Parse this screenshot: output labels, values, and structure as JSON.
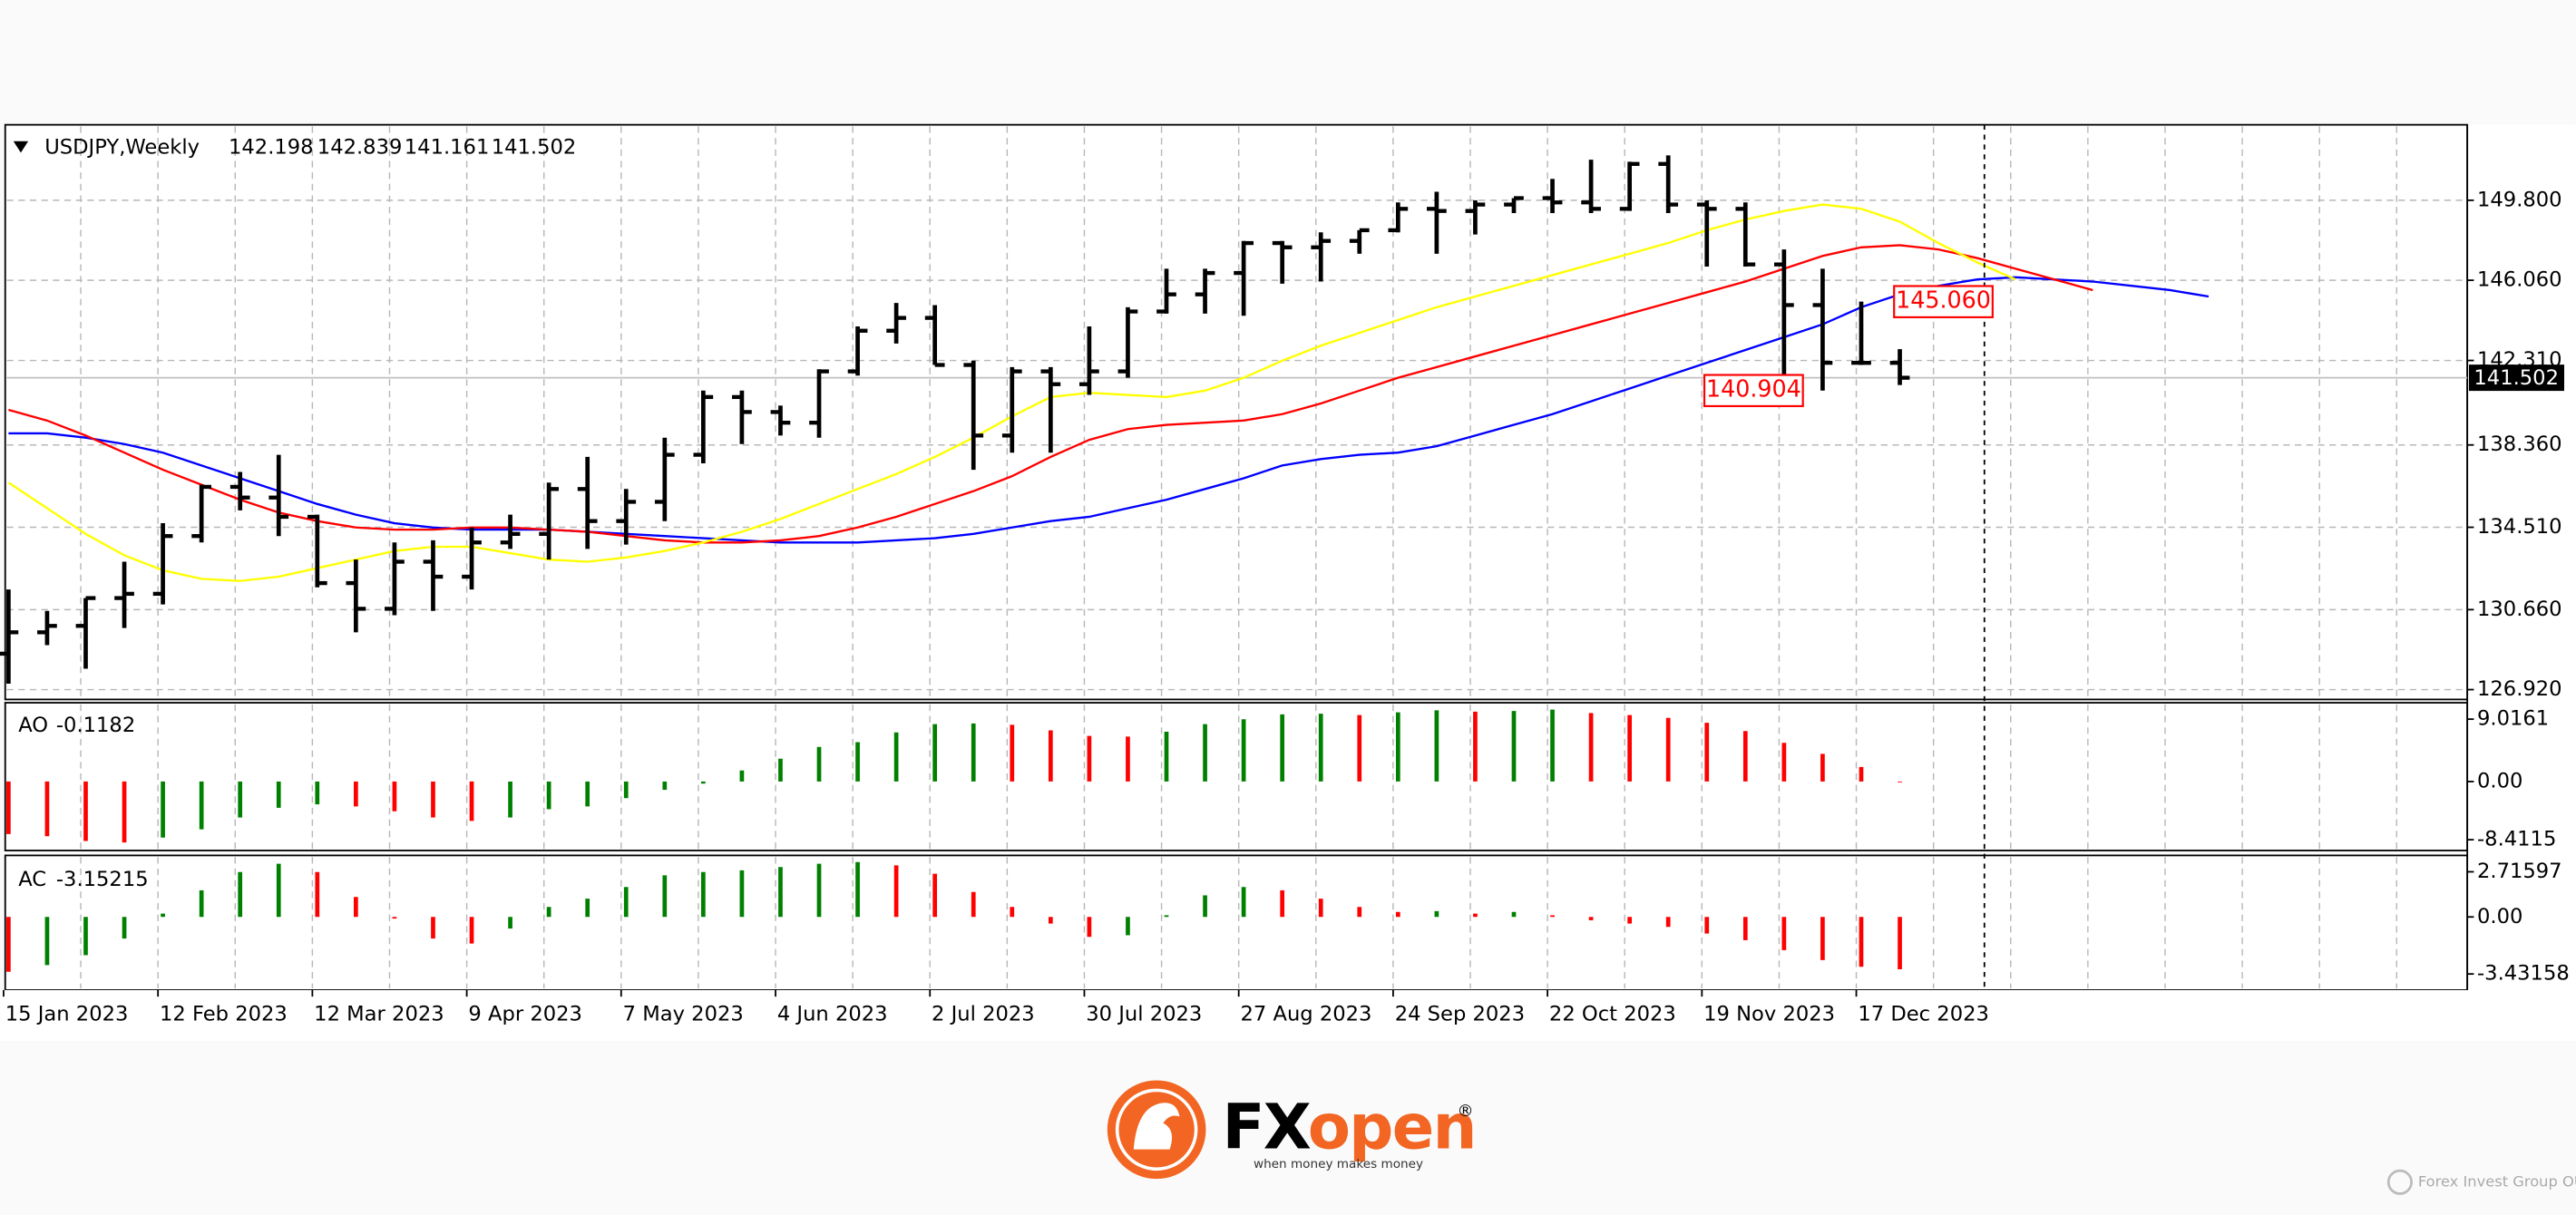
{
  "chart_data": [
    {
      "type": "ohlc",
      "title": "USDJPY,Weekly",
      "categories": [
        "15 Jan 2023",
        null,
        null,
        null,
        "12 Feb 2023",
        null,
        null,
        null,
        "12 Mar 2023",
        null,
        null,
        null,
        "9 Apr 2023",
        null,
        null,
        null,
        "7 May 2023",
        null,
        null,
        null,
        "4 Jun 2023",
        null,
        null,
        null,
        "2 Jul 2023",
        null,
        null,
        null,
        "30 Jul 2023",
        null,
        null,
        null,
        "27 Aug 2023",
        null,
        null,
        null,
        "24 Sep 2023",
        null,
        null,
        null,
        "22 Oct 2023",
        null,
        null,
        null,
        "19 Nov 2023",
        null,
        null,
        null,
        "17 Dec 2023",
        null,
        null,
        null,
        null,
        null,
        null,
        null,
        null,
        null
      ],
      "open": [
        128.6,
        129.6,
        129.9,
        131.2,
        131.4,
        134.1,
        136.4,
        135.9,
        135.0,
        131.9,
        130.7,
        132.9,
        132.2,
        133.8,
        134.2,
        136.3,
        134.8,
        135.7,
        137.9,
        140.6,
        139.9,
        139.4,
        141.8,
        143.7,
        144.3,
        142.1,
        138.8,
        141.8,
        141.2,
        141.8,
        144.6,
        145.4,
        146.4,
        147.8,
        147.6,
        147.9,
        148.4,
        149.4,
        149.3,
        149.6,
        149.9,
        149.7,
        149.4,
        151.5,
        149.6,
        149.4,
        146.8,
        144.9,
        142.2,
        142.198,
        null,
        null,
        null,
        null,
        null,
        null,
        null,
        null
      ],
      "high": [
        131.6,
        130.6,
        131.2,
        132.9,
        134.7,
        136.5,
        137.1,
        137.9,
        135.1,
        133.0,
        133.8,
        133.9,
        134.5,
        135.1,
        136.6,
        137.8,
        136.3,
        138.7,
        140.9,
        140.9,
        140.2,
        141.9,
        143.9,
        145.0,
        144.9,
        142.3,
        142.0,
        142.0,
        143.9,
        144.8,
        146.6,
        146.6,
        147.9,
        147.9,
        148.3,
        148.4,
        149.7,
        150.2,
        149.8,
        149.9,
        150.8,
        151.7,
        151.6,
        151.9,
        149.8,
        149.7,
        147.5,
        146.6,
        145.06,
        142.839,
        null,
        null,
        null,
        null,
        null,
        null,
        null,
        null
      ],
      "low": [
        127.2,
        129.0,
        127.9,
        129.8,
        130.9,
        133.8,
        135.3,
        134.1,
        131.7,
        129.6,
        130.4,
        130.6,
        131.6,
        133.5,
        133.0,
        133.5,
        133.7,
        134.8,
        137.5,
        138.4,
        138.8,
        138.7,
        141.6,
        143.1,
        142.1,
        137.2,
        138.0,
        138.0,
        140.7,
        141.5,
        144.5,
        144.5,
        144.4,
        145.9,
        146.0,
        147.3,
        148.3,
        147.3,
        148.2,
        149.2,
        149.2,
        149.2,
        149.3,
        149.2,
        146.7,
        146.7,
        141.6,
        140.904,
        142.1,
        141.161,
        null,
        null,
        null,
        null,
        null,
        null,
        null,
        null
      ],
      "close": [
        129.6,
        129.9,
        131.2,
        131.4,
        134.1,
        136.4,
        135.9,
        135.0,
        131.9,
        130.7,
        132.9,
        132.2,
        133.8,
        134.2,
        136.3,
        134.8,
        135.7,
        137.9,
        140.6,
        139.9,
        139.4,
        141.8,
        143.7,
        144.3,
        142.1,
        138.8,
        141.8,
        141.2,
        141.8,
        144.6,
        145.4,
        146.4,
        147.8,
        147.6,
        147.9,
        148.4,
        149.4,
        149.3,
        149.6,
        149.9,
        149.7,
        149.4,
        151.5,
        149.6,
        149.4,
        146.8,
        144.9,
        142.2,
        142.198,
        141.502,
        null,
        null,
        null,
        null,
        null,
        null,
        null,
        null
      ],
      "high_value_labels": [
        null,
        null,
        null,
        null,
        null,
        null,
        null,
        null,
        null,
        null,
        null,
        null,
        null,
        null,
        null,
        null,
        null,
        null,
        null,
        null,
        null,
        null,
        null,
        null,
        null,
        null,
        null,
        null,
        null,
        null,
        null,
        null,
        null,
        null,
        null,
        null,
        null,
        null,
        null,
        null,
        null,
        null,
        null,
        null,
        null,
        null,
        null,
        null,
        "145.060",
        null,
        null,
        null,
        null,
        null,
        null,
        null,
        null,
        null
      ],
      "low_value_labels": [
        null,
        null,
        null,
        null,
        null,
        null,
        null,
        null,
        null,
        null,
        null,
        null,
        null,
        null,
        null,
        null,
        null,
        null,
        null,
        null,
        null,
        null,
        null,
        null,
        null,
        null,
        null,
        null,
        null,
        null,
        null,
        null,
        null,
        null,
        null,
        null,
        null,
        null,
        null,
        null,
        null,
        null,
        null,
        null,
        null,
        null,
        null,
        "140.904",
        null,
        null,
        null,
        null,
        null,
        null,
        null,
        null,
        null,
        null
      ],
      "color": "#000000",
      "label_color": "#ff0000",
      "price_line_color": "#c0c0c0",
      "lines": [
        {
          "color": "#0000ff",
          "values": [
            138.9,
            138.9,
            138.7,
            138.4,
            138.0,
            137.4,
            136.8,
            136.2,
            135.6,
            135.1,
            134.7,
            134.5,
            134.4,
            134.4,
            134.4,
            134.3,
            134.2,
            134.1,
            134.0,
            133.9,
            133.8,
            133.8,
            133.8,
            133.9,
            134.0,
            134.2,
            134.5,
            134.8,
            135.0,
            135.4,
            135.8,
            136.3,
            136.8,
            137.4,
            137.7,
            137.9,
            138.0,
            138.3,
            138.8,
            139.3,
            139.8,
            140.4,
            141.0,
            141.6,
            142.2,
            142.8,
            143.4,
            144.0,
            144.8,
            145.4,
            145.8,
            146.1,
            146.2,
            146.1,
            146.0,
            145.8,
            145.6,
            145.3
          ]
        },
        {
          "color": "#ff0000",
          "values": [
            140.0,
            139.5,
            138.8,
            138.0,
            137.2,
            136.5,
            135.8,
            135.2,
            134.8,
            134.5,
            134.4,
            134.4,
            134.5,
            134.5,
            134.4,
            134.3,
            134.1,
            133.9,
            133.8,
            133.8,
            133.9,
            134.1,
            134.5,
            135.0,
            135.6,
            136.2,
            136.9,
            137.8,
            138.6,
            139.1,
            139.3,
            139.4,
            139.5,
            139.8,
            140.3,
            140.9,
            141.5,
            142.0,
            142.5,
            143.0,
            143.5,
            144.0,
            144.5,
            145.0,
            145.5,
            146.0,
            146.6,
            147.2,
            147.6,
            147.7,
            147.5,
            147.1,
            146.6,
            146.1,
            145.6,
            null,
            null,
            null
          ]
        },
        {
          "color": "#ffff00",
          "values": [
            136.6,
            135.4,
            134.2,
            133.2,
            132.5,
            132.1,
            132.0,
            132.2,
            132.6,
            133.0,
            133.4,
            133.6,
            133.6,
            133.3,
            133.0,
            132.9,
            133.1,
            133.4,
            133.8,
            134.3,
            134.9,
            135.6,
            136.3,
            137.0,
            137.8,
            138.7,
            139.7,
            140.6,
            140.8,
            140.7,
            140.6,
            140.9,
            141.5,
            142.3,
            143.0,
            143.6,
            144.2,
            144.8,
            145.3,
            145.8,
            146.3,
            146.8,
            147.3,
            147.8,
            148.4,
            148.9,
            149.3,
            149.6,
            149.4,
            148.8,
            147.8,
            146.9,
            146.1,
            null,
            null,
            null,
            null,
            null
          ]
        }
      ],
      "ylim": [
        126.46,
        153.33
      ],
      "yticks": [
        {
          "value": 149.8,
          "label": "149.800"
        },
        {
          "value": 146.06,
          "label": "146.060"
        },
        {
          "value": 142.31,
          "label": "142.310"
        },
        {
          "value": 138.36,
          "label": "138.360"
        },
        {
          "value": 134.51,
          "label": "134.510"
        },
        {
          "value": 130.66,
          "label": "130.660"
        },
        {
          "value": 126.92,
          "label": "126.920"
        }
      ],
      "grid": true
    },
    {
      "type": "histogram",
      "title": "AO",
      "values": [
        -7.6,
        -7.9,
        -8.6,
        -8.8,
        -8.1,
        -6.9,
        -5.2,
        -3.8,
        -3.3,
        -3.6,
        -4.3,
        -5.2,
        -5.7,
        -5.2,
        -4.0,
        -3.6,
        -2.4,
        -1.2,
        -0.3,
        1.6,
        3.3,
        5.0,
        5.7,
        7.1,
        8.3,
        8.4,
        8.2,
        7.4,
        6.6,
        6.5,
        7.2,
        8.3,
        9.0,
        9.7,
        9.8,
        9.6,
        10.0,
        10.3,
        10.1,
        10.2,
        10.4,
        9.9,
        9.6,
        9.2,
        8.5,
        7.3,
        5.6,
        4.0,
        2.1,
        -0.1182,
        null,
        null,
        null,
        null,
        null,
        null,
        null,
        null
      ],
      "up_color": "#008000",
      "down_color": "#ff0000",
      "ylim": [
        -9.97,
        11.39
      ],
      "yticks": [
        9.0161,
        {
          "value": 0,
          "label": "0.00"
        },
        -8.4115
      ]
    },
    {
      "type": "histogram",
      "title": "AC",
      "values": [
        -3.3,
        -2.9,
        -2.3,
        -1.3,
        0.2,
        1.6,
        2.7,
        3.2,
        2.7,
        1.2,
        -0.1,
        -1.3,
        -1.6,
        -0.7,
        0.6,
        1.1,
        1.8,
        2.5,
        2.7,
        2.8,
        3.0,
        3.2,
        3.3,
        3.1,
        2.6,
        1.5,
        0.6,
        -0.4,
        -1.2,
        -1.1,
        0.1,
        1.3,
        1.8,
        1.6,
        1.1,
        0.6,
        0.3,
        0.35,
        0.2,
        0.3,
        0.1,
        -0.2,
        -0.4,
        -0.6,
        -1.0,
        -1.4,
        -2.0,
        -2.6,
        -3.0,
        -3.15215,
        null,
        null,
        null,
        null,
        null,
        null,
        null,
        null
      ],
      "up_color": "#008000",
      "down_color": "#ff0000",
      "ylim": [
        -4.4,
        3.7
      ],
      "yticks": [
        2.71597,
        {
          "value": 0,
          "label": "0.00"
        },
        -3.43158
      ]
    }
  ],
  "logo": {
    "brand_dark": "FX",
    "brand_accent": "open",
    "mark": "®",
    "tagline": "when money makes money",
    "company": "Forex Invest Group OU"
  }
}
